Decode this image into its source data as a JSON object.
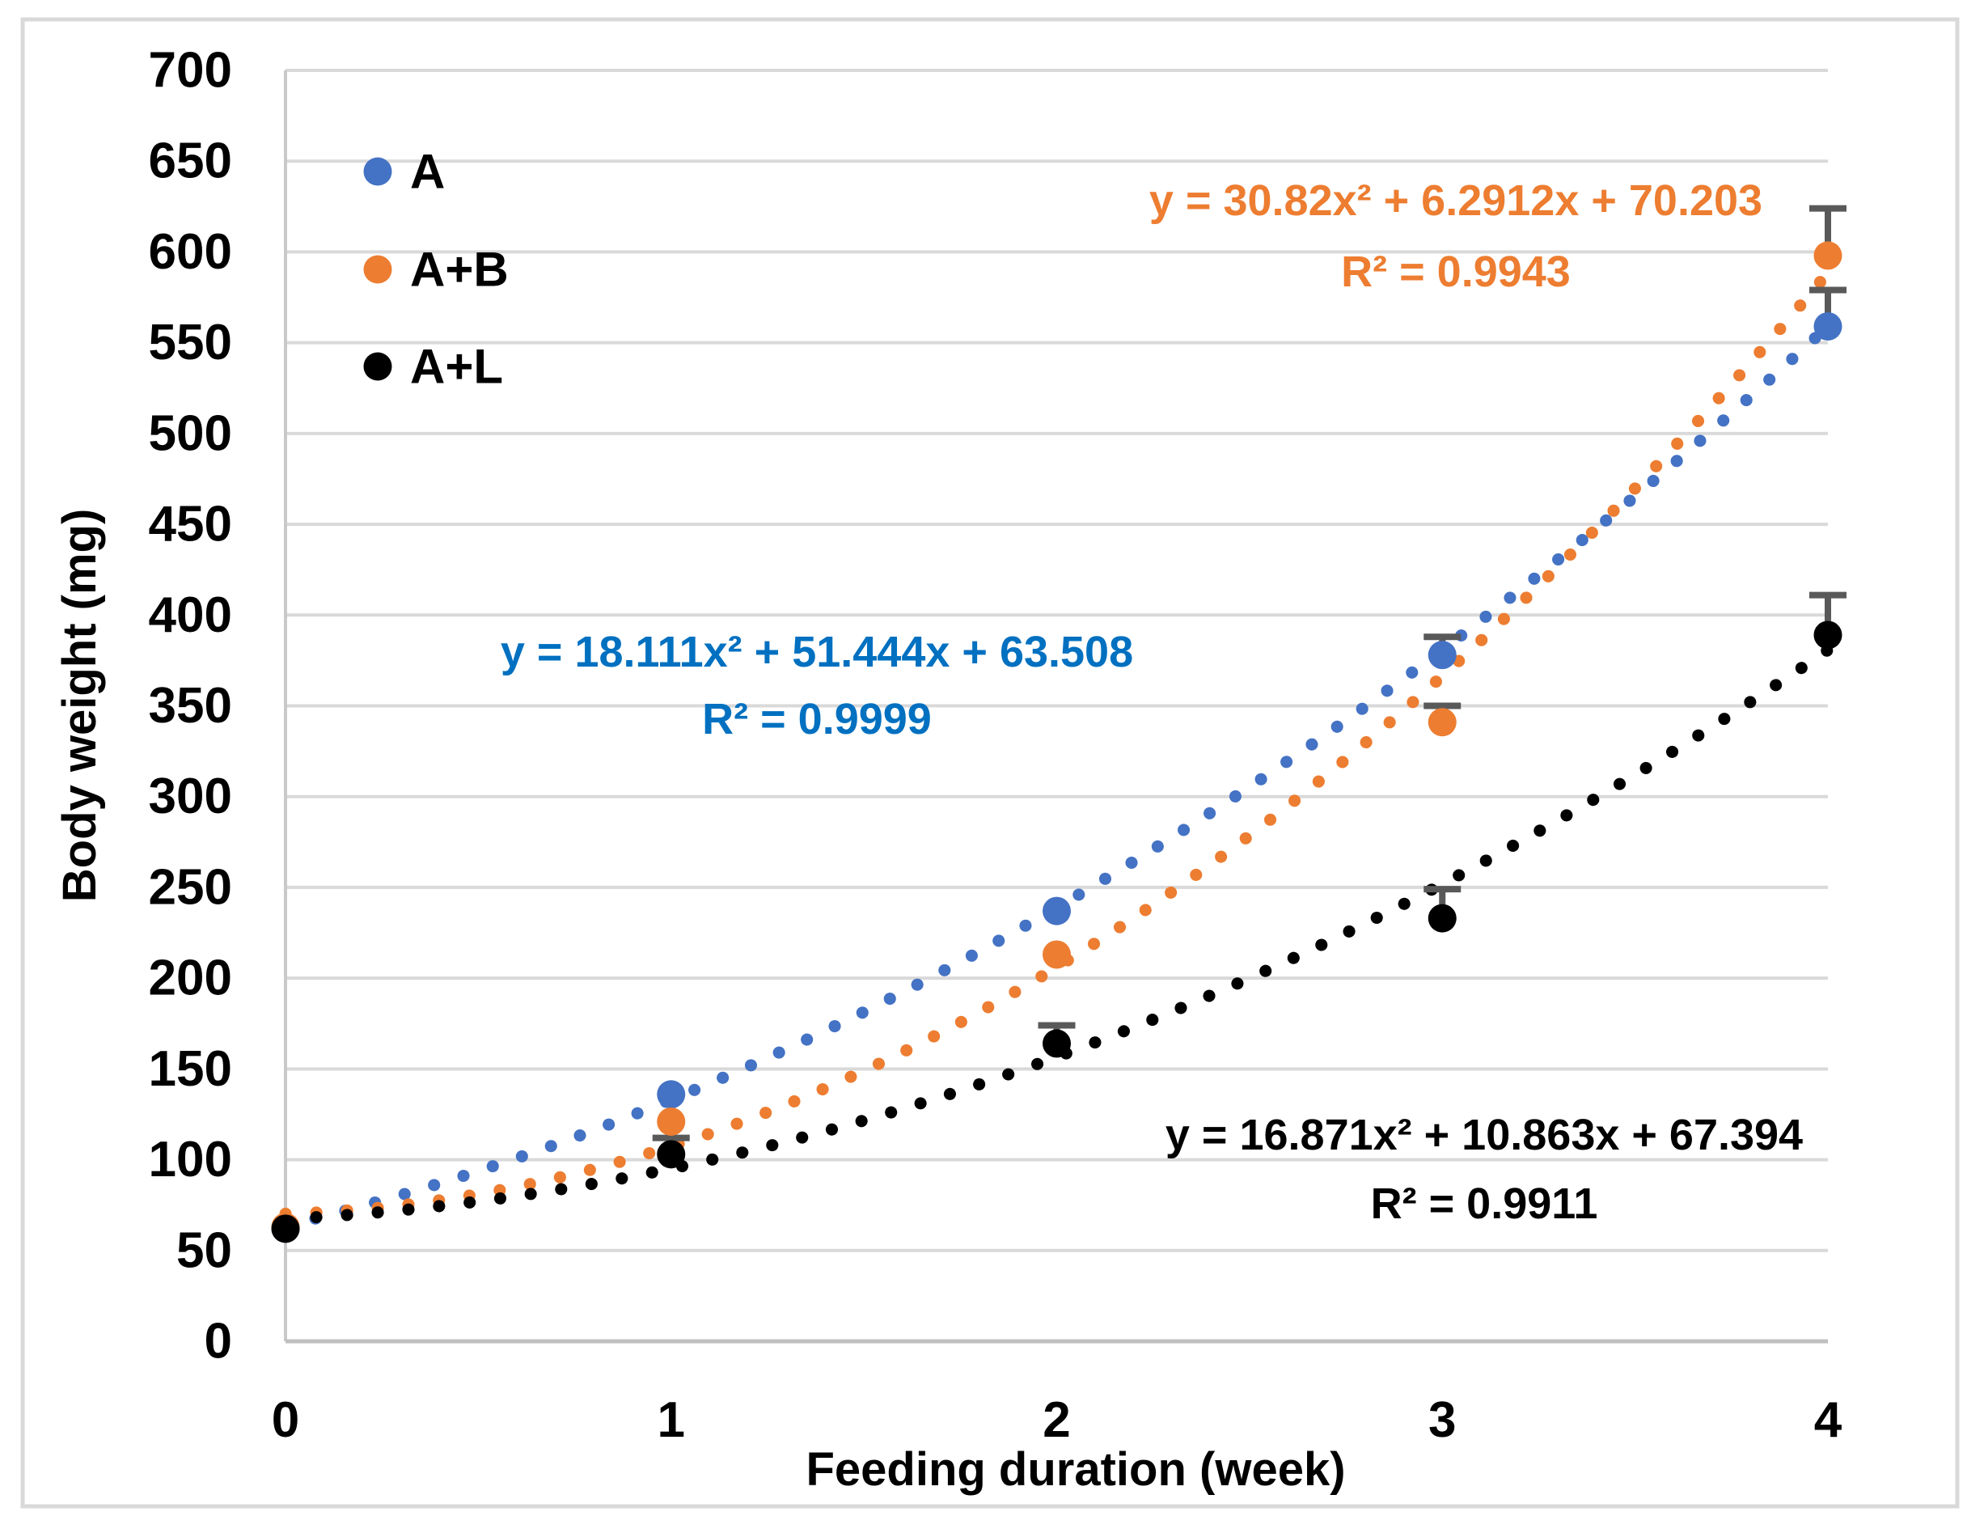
{
  "chart_data": {
    "type": "scatter",
    "title": "",
    "xlabel": "Feeding duration (week)",
    "ylabel": "Body weight (mg)",
    "xlim": [
      0,
      4
    ],
    "ylim": [
      0,
      700
    ],
    "xticks": [
      "0",
      "1",
      "2",
      "3",
      "4"
    ],
    "yticks": [
      "0",
      "50",
      "100",
      "150",
      "200",
      "250",
      "300",
      "350",
      "400",
      "450",
      "500",
      "550",
      "600",
      "650",
      "700"
    ],
    "grid": "horizontal gridlines on",
    "legend_position": "top-left inside plot",
    "x": [
      0,
      1,
      2,
      3,
      4
    ],
    "series": [
      {
        "name": "A",
        "color": "#4472C4",
        "values": [
          62,
          136,
          237,
          378,
          559
        ],
        "errors_up": [
          null,
          null,
          null,
          10,
          20
        ],
        "trendline": {
          "type": "quadratic",
          "style": "dotted",
          "a": 18.111,
          "b": 51.444,
          "c": 63.508
        },
        "equation": "y = 18.111x² + 51.444x + 63.508",
        "r_squared": "R² = 0.9999",
        "label_color": "#0070C0"
      },
      {
        "name": "A+B",
        "color": "#ED7D31",
        "values": [
          63,
          121,
          213,
          341,
          598
        ],
        "errors_up": [
          null,
          null,
          null,
          9,
          26
        ],
        "trendline": {
          "type": "quadratic",
          "style": "dotted",
          "a": 30.82,
          "b": 6.2912,
          "c": 70.203
        },
        "equation": "y = 30.82x² + 6.2912x + 70.203",
        "r_squared": "R² = 0.9943",
        "label_color": "#ED7D31"
      },
      {
        "name": "A+L",
        "color": "#000000",
        "values": [
          62,
          103,
          164,
          233,
          389
        ],
        "errors_up": [
          null,
          9,
          10,
          16,
          22
        ],
        "trendline": {
          "type": "quadratic",
          "style": "dotted",
          "a": 16.871,
          "b": 10.863,
          "c": 67.394
        },
        "equation": "y = 16.871x² + 10.863x + 67.394",
        "r_squared": "R² = 0.9911",
        "label_color": "#000000"
      }
    ],
    "colors": {
      "gridline": "#D9D9D9",
      "axis_line": "#BFBFBF",
      "y_axis_line": "#C9C9C9",
      "error_bar": "#595959",
      "figure_border": "#D9D9D9",
      "tick_label": "#000000",
      "background": "#FFFFFF"
    }
  }
}
